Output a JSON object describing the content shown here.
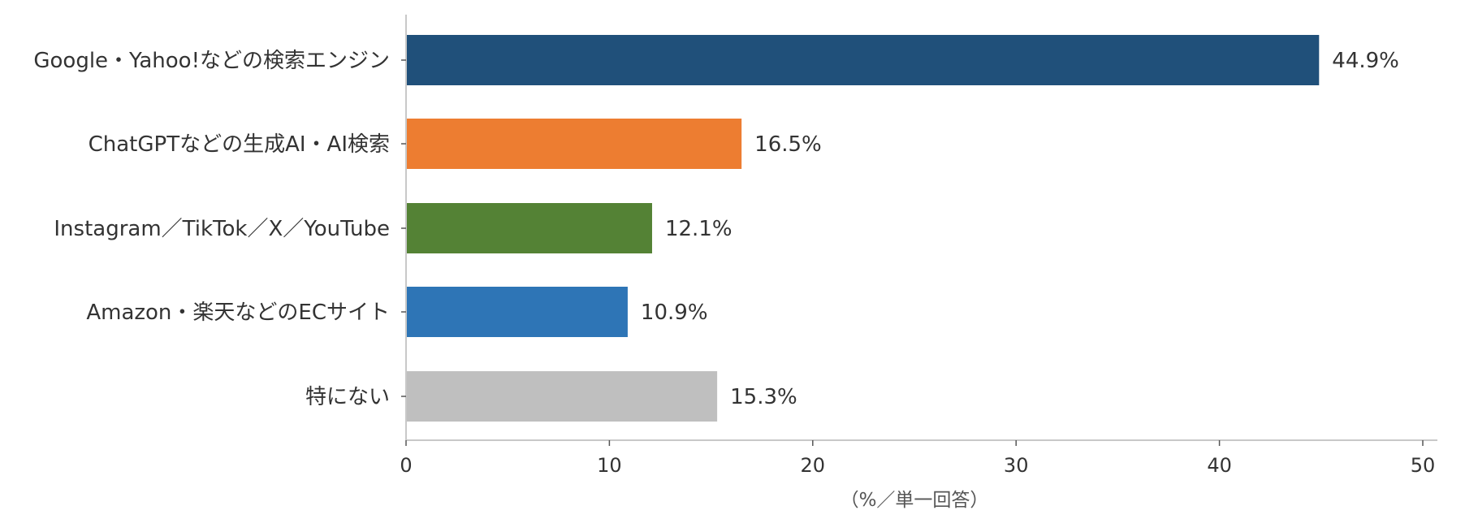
{
  "chart_data": {
    "type": "bar",
    "orientation": "horizontal",
    "categories": [
      "Google・Yahoo!などの検索エンジン",
      "ChatGPTなどの生成AI・AI検索",
      "Instagram／TikTok／X／YouTube",
      "Amazon・楽天などのECサイト",
      "特にない"
    ],
    "values": [
      44.9,
      16.5,
      12.1,
      10.9,
      15.3
    ],
    "value_labels": [
      "44.9%",
      "16.5%",
      "12.1%",
      "10.9%",
      "15.3%"
    ],
    "colors": [
      "#20507a",
      "#ed7d31",
      "#548235",
      "#2e75b6",
      "#bfbfbf"
    ],
    "xlabel": "（%／単一回答）",
    "ylabel": "",
    "title": "",
    "xlim": [
      0,
      50
    ],
    "xticks": [
      0,
      10,
      20,
      30,
      40,
      50
    ],
    "xtick_labels": [
      "0",
      "10",
      "20",
      "30",
      "40",
      "50"
    ],
    "grid": false,
    "axis_color": "#c8c8c8"
  }
}
